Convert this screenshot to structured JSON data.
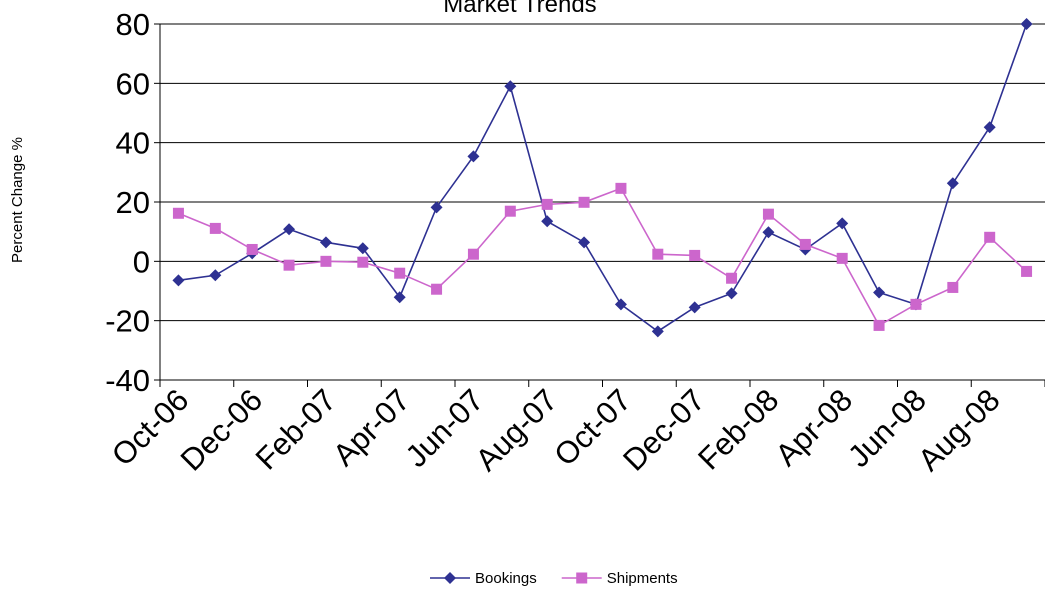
{
  "chart_data": {
    "type": "line",
    "title": "Market Trends",
    "ylabel": "Percent Change %",
    "categories": [
      "Oct-06",
      null,
      "Dec-06",
      null,
      "Feb-07",
      null,
      "Apr-07",
      null,
      "Jun-07",
      null,
      "Aug-07",
      null,
      "Oct-07",
      null,
      "Dec-07",
      null,
      "Feb-08",
      null,
      "Apr-08",
      null,
      "Jun-08",
      null,
      "Aug-08",
      null
    ],
    "series": [
      {
        "name": "Bookings",
        "color": "#2e3192",
        "marker": "diamond",
        "values": [
          -6.4,
          -4.7,
          2.7,
          10.8,
          6.4,
          4.4,
          -12.1,
          18.2,
          35.4,
          59,
          13.5,
          6.4,
          -14.5,
          -23.6,
          -15.5,
          -10.8,
          9.8,
          4,
          12.8,
          -10.5,
          -14.5,
          26.3,
          45.2,
          80
        ]
      },
      {
        "name": "Shipments",
        "color": "#cc66cc",
        "marker": "square",
        "values": [
          16.2,
          11.1,
          4,
          -1.3,
          0,
          -0.3,
          -4,
          -9.4,
          2.4,
          16.9,
          19.2,
          19.9,
          24.6,
          2.4,
          2,
          -5.7,
          15.9,
          5.7,
          1,
          -21.6,
          -14.5,
          -8.8,
          8.1,
          -3.4
        ]
      }
    ],
    "ylim": [
      -40,
      80
    ],
    "yticks": [
      -40,
      -20,
      0,
      20,
      40,
      60,
      80
    ],
    "grid": true,
    "legend": "bottom"
  }
}
